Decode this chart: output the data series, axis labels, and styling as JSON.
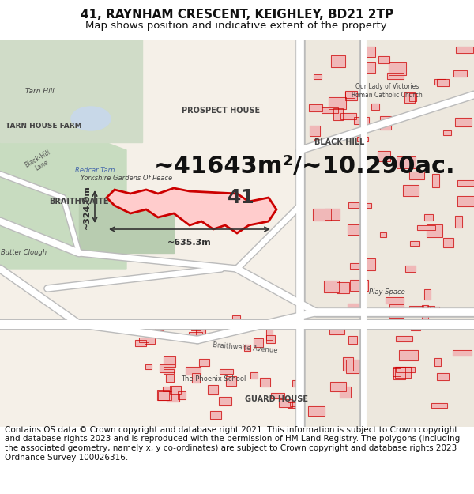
{
  "title_line1": "41, RAYNHAM CRESCENT, KEIGHLEY, BD21 2TP",
  "title_line2": "Map shows position and indicative extent of the property.",
  "title_fontsize": 11,
  "subtitle_fontsize": 9.5,
  "area_text": "~41643m²/~10.290ac.",
  "area_fontsize": 22,
  "width_text": "~635.3m",
  "height_text": "~324.0m",
  "label_41": "41",
  "map_bg_color": "#f0ece4",
  "footer_text": "Contains OS data © Crown copyright and database right 2021. This information is subject to Crown copyright and database rights 2023 and is reproduced with the permission of HM Land Registry. The polygons (including the associated geometry, namely x, y co-ordinates) are subject to Crown copyright and database rights 2023 Ordnance Survey 100026316.",
  "footer_fontsize": 7.5,
  "red_color": "#cc0000",
  "building_color": "#f0b8b8",
  "fig_width": 6.0,
  "fig_height": 6.25
}
